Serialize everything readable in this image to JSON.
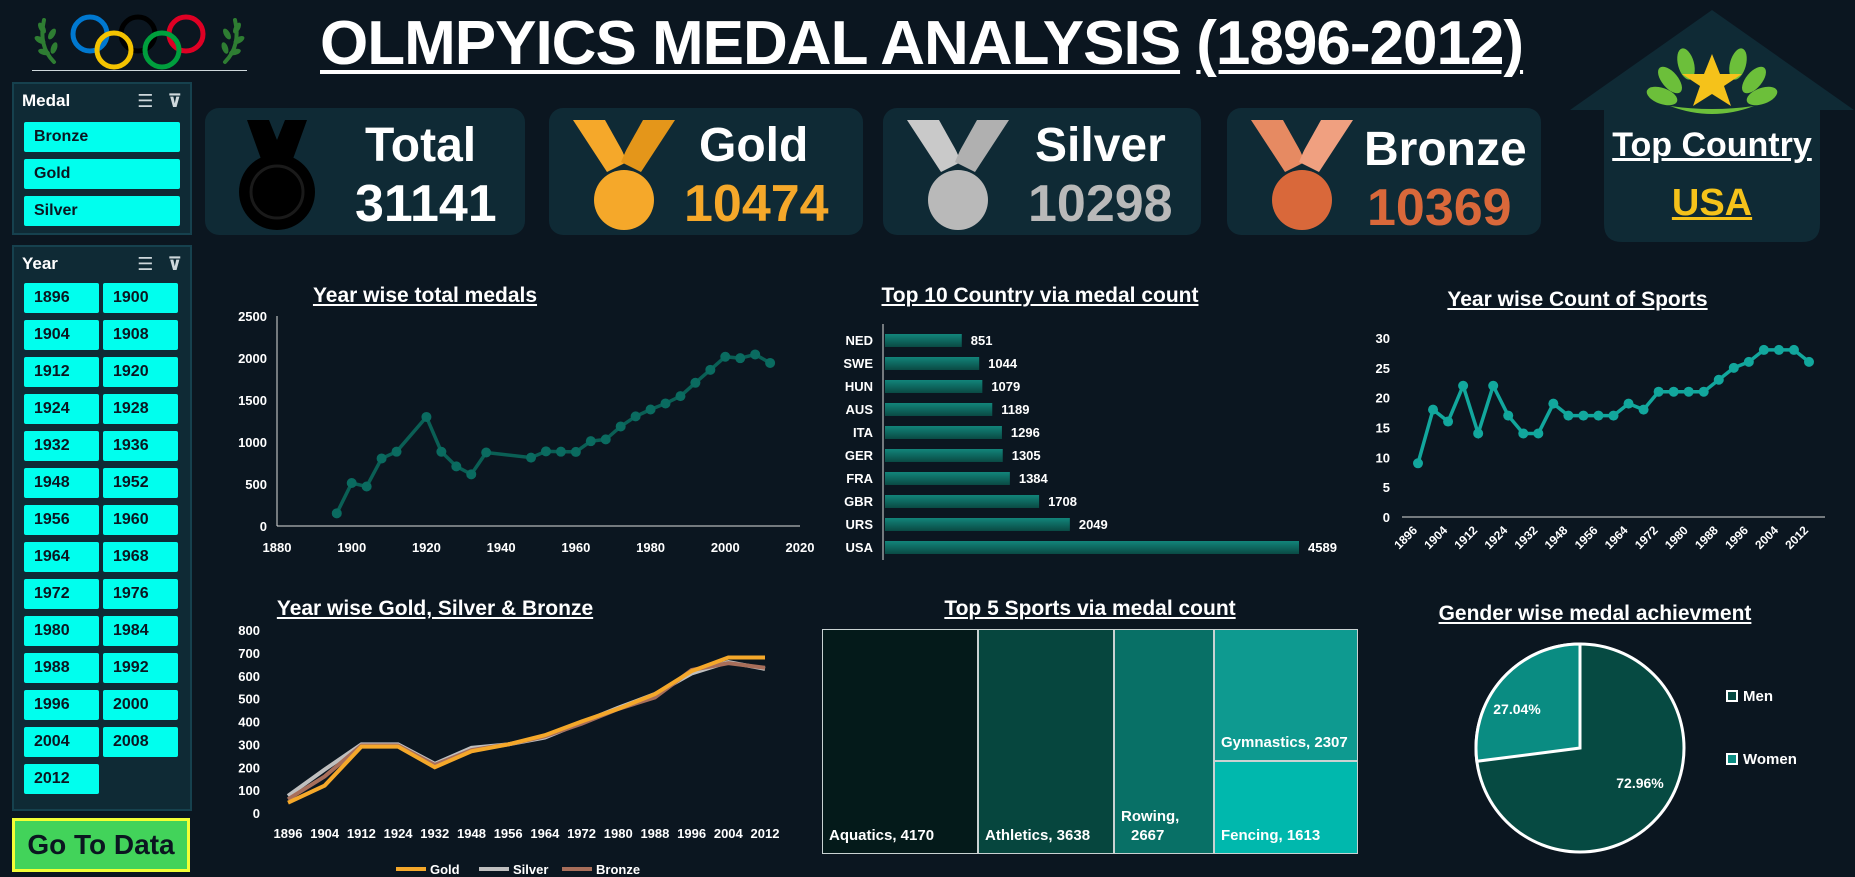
{
  "title": {
    "main": "OLMPYICS MEDAL ANALYSIS",
    "years": "(1896-2012)"
  },
  "slicers": {
    "medal": {
      "header": "Medal",
      "items": [
        "Bronze",
        "Gold",
        "Silver"
      ]
    },
    "year": {
      "header": "Year",
      "items": [
        "1896",
        "1900",
        "1904",
        "1908",
        "1912",
        "1920",
        "1924",
        "1928",
        "1932",
        "1936",
        "1948",
        "1952",
        "1956",
        "1960",
        "1964",
        "1968",
        "1972",
        "1976",
        "1980",
        "1984",
        "1988",
        "1992",
        "1996",
        "2000",
        "2004",
        "2008",
        "2012"
      ]
    }
  },
  "go_to_data": "Go To Data",
  "kpis": {
    "total": {
      "label": "Total",
      "value": "31141"
    },
    "gold": {
      "label": "Gold",
      "value": "10474",
      "color": "#f5a82a"
    },
    "silver": {
      "label": "Silver",
      "value": "10298",
      "color": "#b9b9b9"
    },
    "bronze": {
      "label": "Bronze",
      "value": "10369",
      "color": "#d9683a"
    }
  },
  "top_country": {
    "label": "Top Country",
    "value": "USA"
  },
  "colors": {
    "accent": "#11a7a0",
    "teal_dark": "#06483f",
    "bg": "#0b1620",
    "gold_line": "#f5a82a",
    "silver_line": "#bfbfbf",
    "bronze_line": "#a86e5a"
  },
  "chart_data": [
    {
      "id": "year_total",
      "type": "line",
      "title": "Year wise total medals",
      "x_ticks": [
        "1880",
        "1900",
        "1920",
        "1940",
        "1960",
        "1980",
        "2000",
        "2020"
      ],
      "y_ticks": [
        "0",
        "500",
        "1000",
        "1500",
        "2000",
        "2500"
      ],
      "xlim": [
        1880,
        2020
      ],
      "ylim": [
        0,
        2500
      ],
      "x": [
        1896,
        1900,
        1904,
        1908,
        1912,
        1920,
        1924,
        1928,
        1932,
        1936,
        1948,
        1952,
        1956,
        1960,
        1964,
        1968,
        1972,
        1976,
        1980,
        1984,
        1988,
        1992,
        1996,
        2000,
        2004,
        2008,
        2012
      ],
      "values": [
        151,
        512,
        470,
        804,
        885,
        1298,
        884,
        710,
        615,
        875,
        814,
        889,
        885,
        882,
        1010,
        1031,
        1185,
        1305,
        1387,
        1459,
        1546,
        1705,
        1859,
        2015,
        1998,
        2042,
        1941
      ]
    },
    {
      "id": "top10_country",
      "type": "bar",
      "title": "Top 10 Country via medal count",
      "categories": [
        "NED",
        "SWE",
        "HUN",
        "AUS",
        "ITA",
        "GER",
        "FRA",
        "GBR",
        "URS",
        "USA"
      ],
      "values": [
        851,
        1044,
        1079,
        1189,
        1296,
        1305,
        1384,
        1708,
        2049,
        4589
      ]
    },
    {
      "id": "year_sports",
      "type": "line",
      "title": "Year wise Count of Sports",
      "categories": [
        "1896",
        "1900",
        "1904",
        "1908",
        "1912",
        "1920",
        "1924",
        "1928",
        "1932",
        "1936",
        "1948",
        "1952",
        "1956",
        "1960",
        "1964",
        "1968",
        "1972",
        "1976",
        "1980",
        "1984",
        "1988",
        "1992",
        "1996",
        "2000",
        "2004",
        "2008",
        "2012"
      ],
      "x_ticks": [
        "1896",
        "1904",
        "1912",
        "1924",
        "1932",
        "1948",
        "1956",
        "1964",
        "1972",
        "1980",
        "1988",
        "1996",
        "2004",
        "2012"
      ],
      "y_ticks": [
        "0",
        "5",
        "10",
        "15",
        "20",
        "25",
        "30"
      ],
      "ylim": [
        0,
        30
      ],
      "values": [
        9,
        18,
        16,
        22,
        14,
        22,
        17,
        14,
        14,
        19,
        17,
        17,
        17,
        17,
        19,
        18,
        21,
        21,
        21,
        21,
        23,
        25,
        26,
        28,
        28,
        28,
        26
      ]
    },
    {
      "id": "year_gsb",
      "type": "line",
      "title": "Year wise Gold, Silver & Bronze",
      "categories": [
        "1896",
        "1904",
        "1912",
        "1924",
        "1932",
        "1948",
        "1956",
        "1964",
        "1972",
        "1980",
        "1988",
        "1996",
        "2004",
        "2012"
      ],
      "y_ticks": [
        "0",
        "100",
        "200",
        "300",
        "400",
        "500",
        "600",
        "700",
        "800"
      ],
      "ylim": [
        0,
        800
      ],
      "series": [
        {
          "name": "Gold",
          "color": "#f5a82a",
          "values": [
            45,
            120,
            290,
            290,
            200,
            270,
            300,
            340,
            400,
            455,
            520,
            620,
            680,
            680
          ]
        },
        {
          "name": "Silver",
          "color": "#bfbfbf",
          "values": [
            75,
            190,
            300,
            300,
            215,
            285,
            300,
            330,
            395,
            460,
            520,
            610,
            660,
            630
          ]
        },
        {
          "name": "Bronze",
          "color": "#a86e5a",
          "values": [
            60,
            160,
            295,
            295,
            210,
            275,
            300,
            335,
            390,
            455,
            505,
            625,
            655,
            635
          ]
        }
      ]
    },
    {
      "id": "top5_sports",
      "type": "treemap",
      "title": "Top 5 Sports via medal count",
      "items": [
        {
          "name": "Aquatics",
          "label": "Aquatics, 4170",
          "value": 4170,
          "color": "#041a1a"
        },
        {
          "name": "Athletics",
          "label": "Athletics, 3638",
          "value": 3638,
          "color": "#06463e"
        },
        {
          "name": "Rowing",
          "label1": "Rowing,",
          "label2": "2667",
          "value": 2667,
          "color": "#087066"
        },
        {
          "name": "Gymnastics",
          "label": "Gymnastics, 2307",
          "value": 2307,
          "color": "#0e9a90"
        },
        {
          "name": "Fencing",
          "label": "Fencing, 1613",
          "value": 1613,
          "color": "#00b8ad"
        }
      ]
    },
    {
      "id": "gender_pie",
      "type": "pie",
      "title": "Gender wise medal achievment",
      "slices": [
        {
          "name": "Men",
          "label": "72.96%",
          "value": 72.96,
          "color": "#064a42"
        },
        {
          "name": "Women",
          "label": "27.04%",
          "value": 27.04,
          "color": "#0a8c82"
        }
      ],
      "legend": [
        "Men",
        "Women"
      ],
      "legend_position": "right"
    }
  ]
}
